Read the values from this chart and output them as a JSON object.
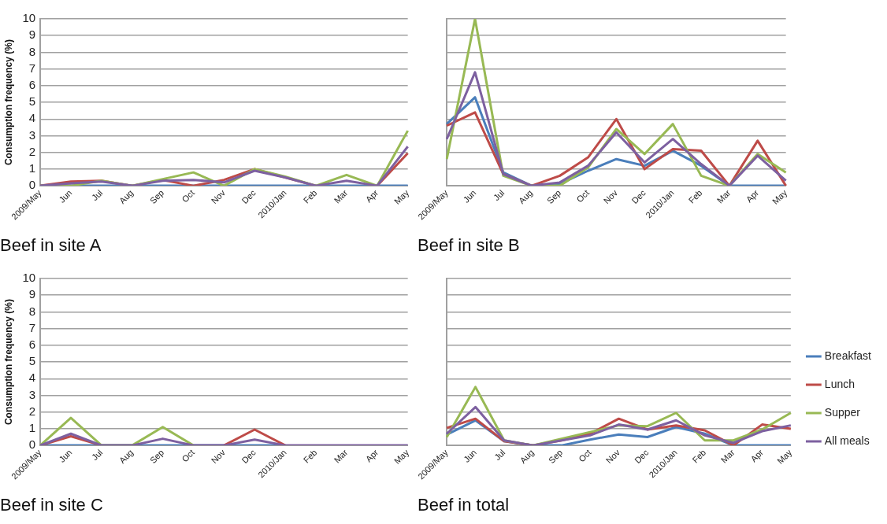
{
  "chart_data": [
    {
      "type": "line",
      "title": "Beef in site A",
      "ylabel": "Consumption frequency (%)",
      "categories": [
        "2009/May",
        "Jun",
        "Jul",
        "Aug",
        "Sep",
        "Oct",
        "Nov",
        "Dec",
        "2010/Jan",
        "Feb",
        "Mar",
        "Apr",
        "May"
      ],
      "ylim": [
        0,
        10
      ],
      "yticks": [
        0,
        1,
        2,
        3,
        4,
        5,
        6,
        7,
        8,
        9,
        10
      ],
      "grid": "y",
      "legend": false,
      "marker": "none",
      "line_style": "solid",
      "series": [
        {
          "color": "#4a7ebb",
          "values": [
            0,
            0,
            0,
            0,
            0,
            0,
            0,
            0,
            0,
            0,
            0,
            0,
            0
          ]
        },
        {
          "color": "#be4b48",
          "values": [
            0,
            0.25,
            0.3,
            0,
            0.35,
            0,
            0.35,
            1,
            0.5,
            0,
            null,
            0,
            1.95
          ]
        },
        {
          "color": "#98b954",
          "values": [
            0,
            0,
            0.3,
            0,
            0.4,
            0.8,
            0,
            1,
            0.55,
            0,
            0.65,
            0,
            3.3
          ]
        },
        {
          "color": "#7d60a0",
          "values": [
            0,
            0.15,
            0.25,
            0,
            0.3,
            0.35,
            0.2,
            0.9,
            0.5,
            0,
            0.3,
            0,
            2.35
          ]
        }
      ]
    },
    {
      "type": "line",
      "title": "Beef in site B",
      "categories": [
        "2009/May",
        "Jun",
        "Jul",
        "Aug",
        "Sep",
        "Oct",
        "Nov",
        "Dec",
        "2010/Jan",
        "Feb",
        "Mar",
        "Apr",
        "May"
      ],
      "ylim": [
        0,
        10
      ],
      "yticks": [
        0,
        1,
        2,
        3,
        4,
        5,
        6,
        7,
        8,
        9,
        10
      ],
      "tick_labels": "x",
      "grid": "y",
      "legend": false,
      "marker": "none",
      "line_style": "solid",
      "series": [
        {
          "color": "#4a7ebb",
          "values": [
            3.7,
            5.3,
            0.8,
            0,
            0.1,
            0.9,
            1.6,
            1.2,
            2.1,
            1.2,
            0,
            0,
            0
          ]
        },
        {
          "color": "#be4b48",
          "values": [
            3.6,
            4.4,
            0.7,
            0,
            0.6,
            1.7,
            4,
            1,
            2.2,
            2.1,
            0,
            2.7,
            0
          ]
        },
        {
          "color": "#98b954",
          "values": [
            1.6,
            10,
            0.6,
            0,
            0,
            1.1,
            3.4,
            1.9,
            3.7,
            0.6,
            0,
            1.9,
            0.8
          ]
        },
        {
          "color": "#7d60a0",
          "values": [
            2.8,
            6.8,
            0.7,
            0,
            0.2,
            1.2,
            3.2,
            1.4,
            2.8,
            1.3,
            0,
            1.8,
            0.3
          ]
        }
      ]
    },
    {
      "type": "line",
      "title": "Beef in site C",
      "ylabel": "Consumption frequency (%)",
      "categories": [
        "2009/May",
        "Jun",
        "Jul",
        "Aug",
        "Sep",
        "Oct",
        "Nov",
        "Dec",
        "2010/Jan",
        "Feb",
        "Mar",
        "Apr",
        "May"
      ],
      "ylim": [
        0,
        10
      ],
      "yticks": [
        0,
        1,
        2,
        3,
        4,
        5,
        6,
        7,
        8,
        9,
        10
      ],
      "grid": "y",
      "legend": false,
      "marker": "none",
      "line_style": "solid",
      "series": [
        {
          "color": "#4a7ebb",
          "values": [
            0,
            0,
            0,
            0,
            0,
            0,
            0,
            0,
            0,
            null,
            null,
            null,
            null
          ]
        },
        {
          "color": "#be4b48",
          "values": [
            0,
            0.55,
            0,
            null,
            null,
            null,
            0,
            0.95,
            0,
            null,
            null,
            null,
            null
          ]
        },
        {
          "color": "#98b954",
          "values": [
            0,
            1.65,
            0,
            0,
            1.1,
            0,
            null,
            null,
            null,
            null,
            null,
            null,
            null
          ]
        },
        {
          "color": "#7d60a0",
          "values": [
            0,
            0.7,
            0,
            0,
            0.4,
            0,
            0,
            0.35,
            0,
            0,
            0,
            0,
            0
          ]
        }
      ]
    },
    {
      "type": "line",
      "title": "Beef in total",
      "categories": [
        "2009/May",
        "Jun",
        "Jul",
        "Aug",
        "Sep",
        "Oct",
        "Nov",
        "Dec",
        "2010/Jan",
        "Feb",
        "Mar",
        "Apr",
        "May"
      ],
      "ylim": [
        0,
        10
      ],
      "yticks": [
        0,
        1,
        2,
        3,
        4,
        5,
        6,
        7,
        8,
        9,
        10
      ],
      "tick_labels": "x",
      "grid": "y",
      "legend": "right",
      "marker": "none",
      "line_style": "solid",
      "series": [
        {
          "name": "Breakfast",
          "color": "#4a7ebb",
          "values": [
            0.65,
            1.5,
            0.25,
            0,
            0,
            0.35,
            0.65,
            0.5,
            1.1,
            0.7,
            0,
            0,
            0
          ]
        },
        {
          "name": "Lunch",
          "color": "#be4b48",
          "values": [
            1.05,
            1.6,
            0.25,
            0,
            0.3,
            0.7,
            1.6,
            0.95,
            1.2,
            0.9,
            0,
            1.25,
            1
          ]
        },
        {
          "name": "Supper",
          "color": "#98b954",
          "values": [
            0.5,
            3.5,
            0.3,
            0,
            0.4,
            0.8,
            1.2,
            1.15,
            1.95,
            0.3,
            0.3,
            0.95,
            1.95
          ]
        },
        {
          "name": "All meals",
          "color": "#7d60a0",
          "values": [
            0.7,
            2.3,
            0.3,
            0,
            0.3,
            0.6,
            1.25,
            0.95,
            1.5,
            0.6,
            0.15,
            0.85,
            1.2
          ]
        }
      ]
    }
  ]
}
